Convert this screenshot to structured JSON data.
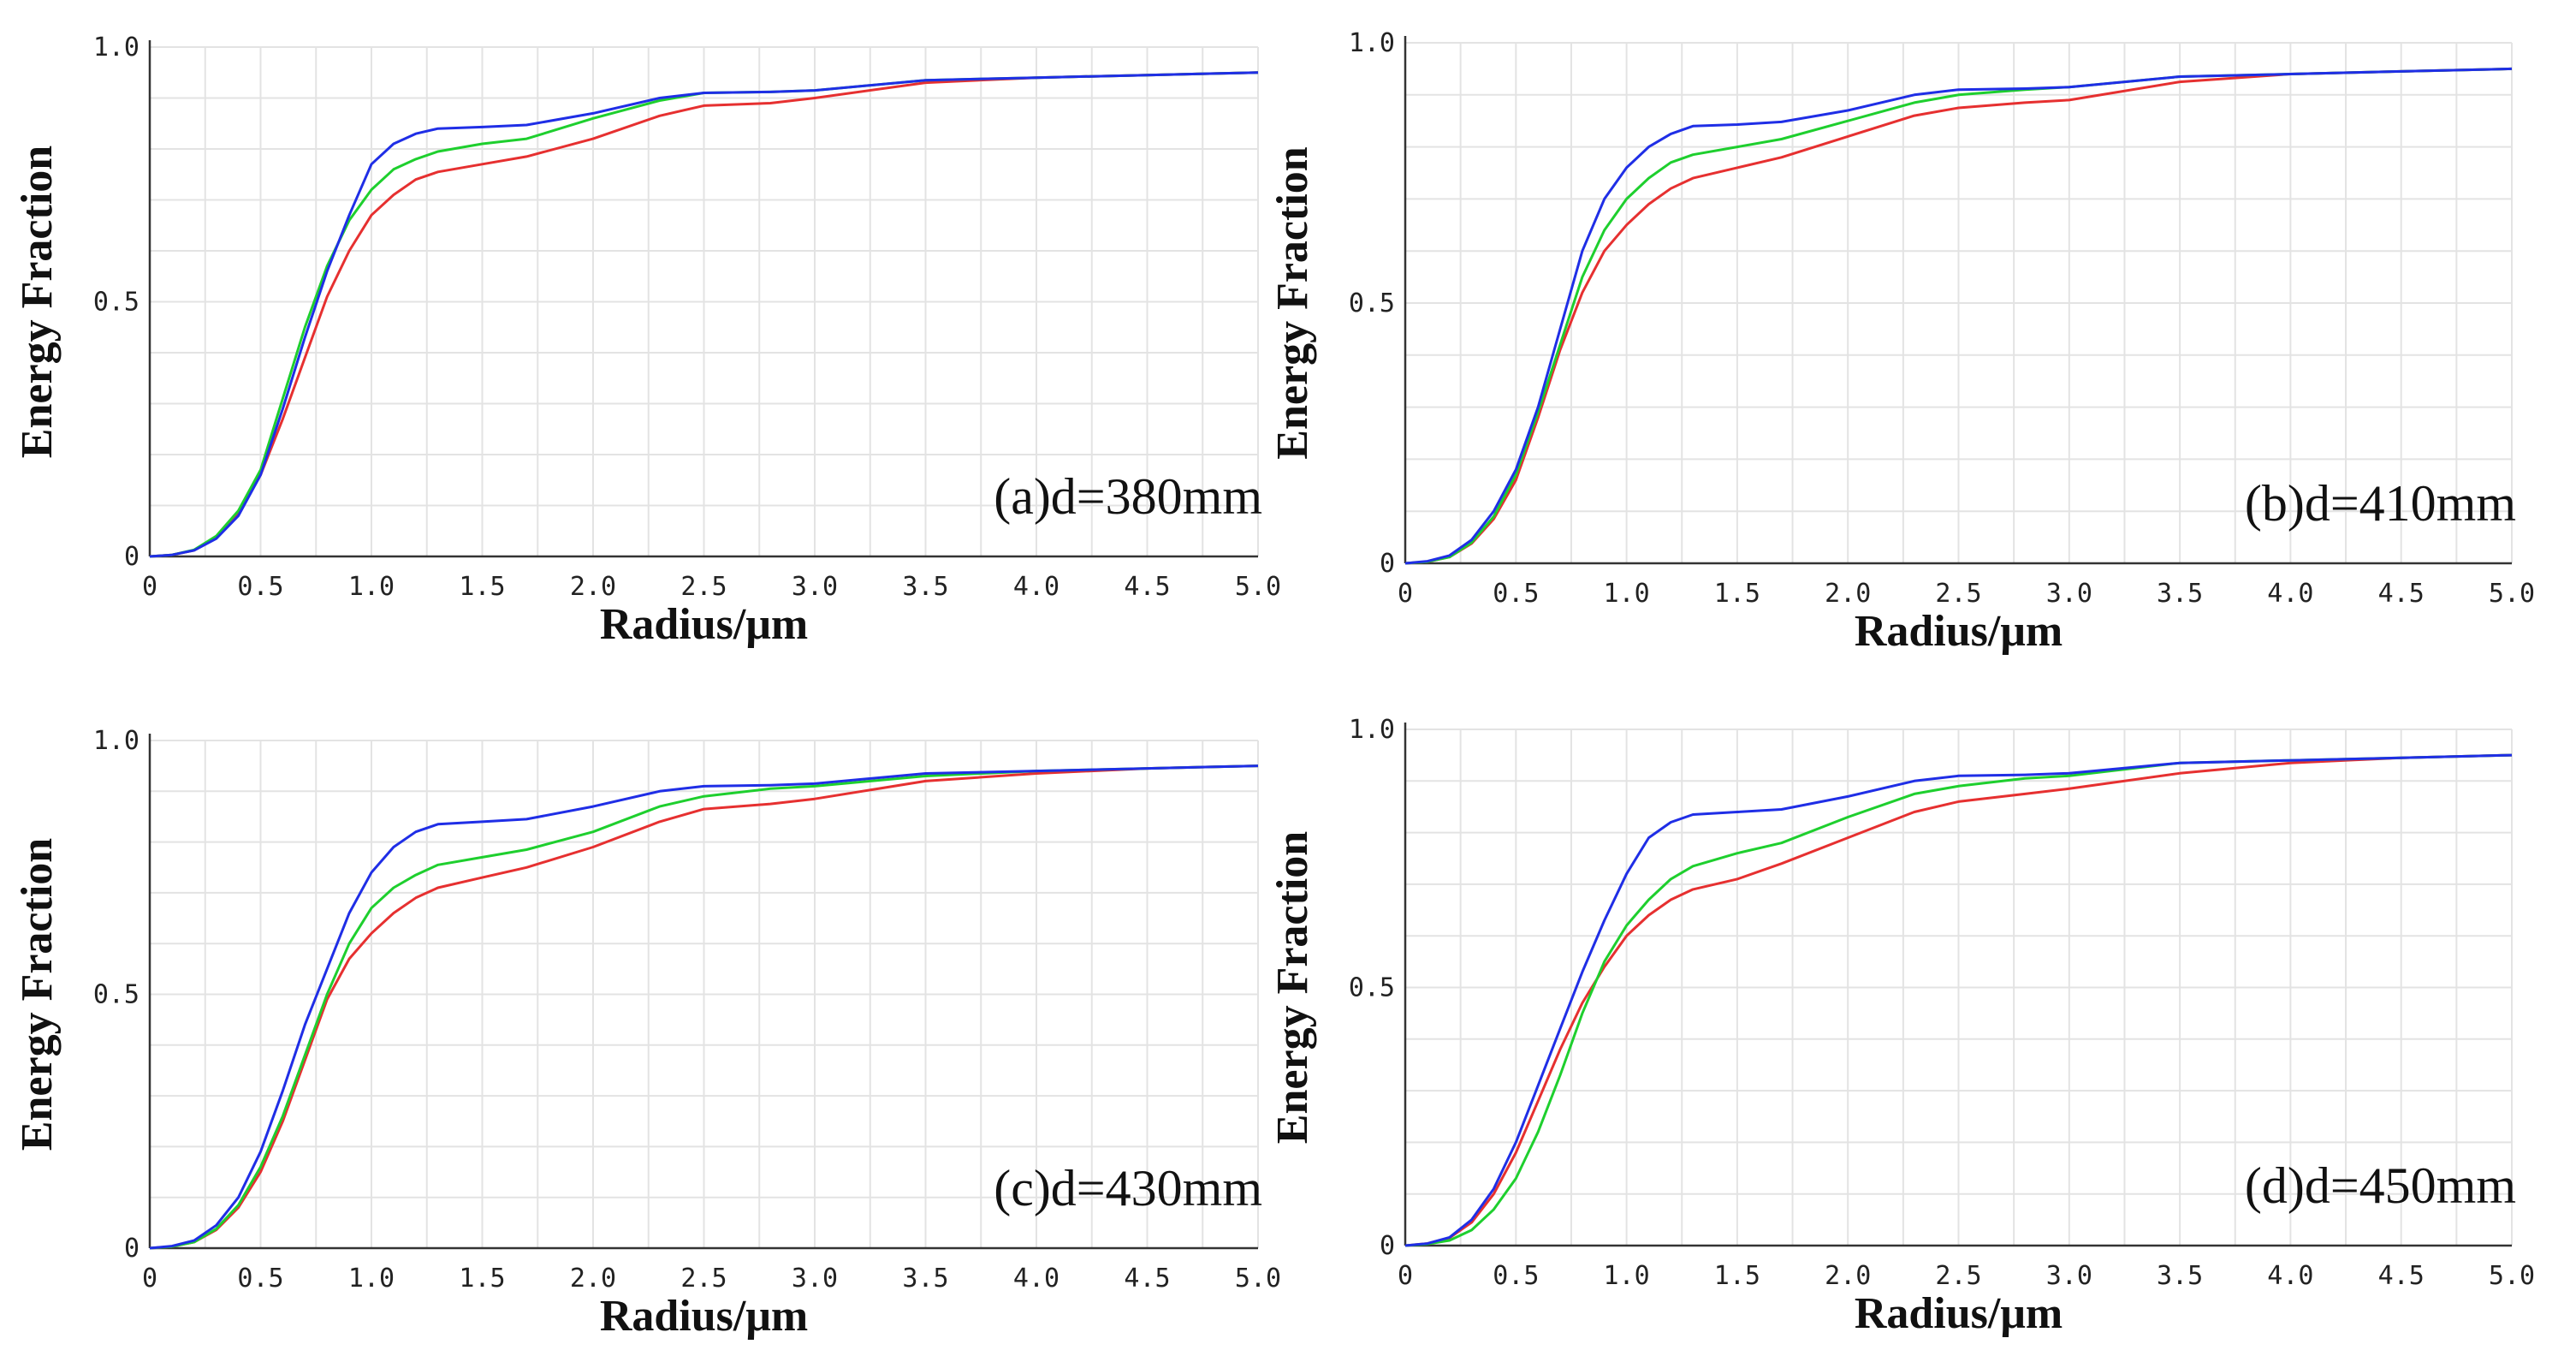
{
  "chart_data": [
    {
      "type": "line",
      "panel_label": "(a)d=380mm",
      "xlabel": "Radius/μm",
      "ylabel": "Energy Fraction",
      "xlim": [
        0,
        5.0
      ],
      "ylim": [
        0,
        1.0
      ],
      "x_ticks": [
        "0",
        "0.5",
        "1.0",
        "1.5",
        "2.0",
        "2.5",
        "3.0",
        "3.5",
        "4.0",
        "4.5",
        "5.0"
      ],
      "y_ticks": [
        "0",
        "0.5",
        "1.0"
      ],
      "x": [
        0,
        0.1,
        0.2,
        0.3,
        0.4,
        0.5,
        0.6,
        0.7,
        0.8,
        0.9,
        1.0,
        1.1,
        1.2,
        1.3,
        1.5,
        1.7,
        2.0,
        2.3,
        2.5,
        2.8,
        3.0,
        3.5,
        4.0,
        4.5,
        5.0
      ],
      "series": [
        {
          "name": "blue",
          "color": "#1f2ee6",
          "values": [
            0,
            0.003,
            0.012,
            0.035,
            0.08,
            0.16,
            0.29,
            0.43,
            0.56,
            0.67,
            0.77,
            0.81,
            0.83,
            0.84,
            0.843,
            0.847,
            0.87,
            0.9,
            0.91,
            0.912,
            0.915,
            0.935,
            0.94,
            0.945,
            0.95
          ]
        },
        {
          "name": "green",
          "color": "#1ecf2e",
          "values": [
            0,
            0.003,
            0.013,
            0.04,
            0.09,
            0.17,
            0.31,
            0.45,
            0.57,
            0.66,
            0.72,
            0.76,
            0.78,
            0.795,
            0.81,
            0.82,
            0.86,
            0.895,
            0.91,
            0.912,
            0.915,
            0.935,
            0.94,
            0.945,
            0.95
          ]
        },
        {
          "name": "red",
          "color": "#e63030",
          "values": [
            0,
            0.003,
            0.012,
            0.038,
            0.085,
            0.16,
            0.27,
            0.39,
            0.51,
            0.6,
            0.67,
            0.71,
            0.74,
            0.755,
            0.77,
            0.785,
            0.82,
            0.865,
            0.885,
            0.89,
            0.9,
            0.93,
            0.94,
            0.945,
            0.95
          ]
        }
      ]
    },
    {
      "type": "line",
      "panel_label": "(b)d=410mm",
      "xlabel": "Radius/μm",
      "ylabel": "Energy Fraction",
      "xlim": [
        0,
        5.0
      ],
      "ylim": [
        0,
        1.0
      ],
      "x_ticks": [
        "0",
        "0.5",
        "1.0",
        "1.5",
        "2.0",
        "2.5",
        "3.0",
        "3.5",
        "4.0",
        "4.5",
        "5.0"
      ],
      "y_ticks": [
        "0",
        "0.5",
        "1.0"
      ],
      "x": [
        0,
        0.1,
        0.2,
        0.3,
        0.4,
        0.5,
        0.6,
        0.7,
        0.8,
        0.9,
        1.0,
        1.1,
        1.2,
        1.3,
        1.5,
        1.7,
        2.0,
        2.3,
        2.5,
        2.8,
        3.0,
        3.5,
        4.0,
        4.5,
        5.0
      ],
      "series": [
        {
          "name": "blue",
          "color": "#1f2ee6",
          "values": [
            0,
            0.004,
            0.015,
            0.045,
            0.1,
            0.18,
            0.3,
            0.45,
            0.6,
            0.7,
            0.76,
            0.8,
            0.825,
            0.84,
            0.843,
            0.848,
            0.87,
            0.9,
            0.91,
            0.912,
            0.915,
            0.935,
            0.94,
            0.945,
            0.95
          ]
        },
        {
          "name": "green",
          "color": "#1ecf2e",
          "values": [
            0,
            0.003,
            0.012,
            0.04,
            0.09,
            0.17,
            0.29,
            0.42,
            0.55,
            0.64,
            0.7,
            0.74,
            0.77,
            0.785,
            0.8,
            0.815,
            0.85,
            0.885,
            0.9,
            0.91,
            0.915,
            0.935,
            0.94,
            0.945,
            0.95
          ]
        },
        {
          "name": "red",
          "color": "#e63030",
          "values": [
            0,
            0.003,
            0.012,
            0.038,
            0.085,
            0.16,
            0.28,
            0.41,
            0.52,
            0.6,
            0.65,
            0.69,
            0.72,
            0.74,
            0.76,
            0.78,
            0.82,
            0.86,
            0.875,
            0.885,
            0.89,
            0.925,
            0.94,
            0.945,
            0.95
          ]
        }
      ]
    },
    {
      "type": "line",
      "panel_label": "(c)d=430mm",
      "xlabel": "Radius/μm",
      "ylabel": "Energy Fraction",
      "xlim": [
        0,
        5.0
      ],
      "ylim": [
        0,
        1.0
      ],
      "x_ticks": [
        "0",
        "0.5",
        "1.0",
        "1.5",
        "2.0",
        "2.5",
        "3.0",
        "3.5",
        "4.0",
        "4.5",
        "5.0"
      ],
      "y_ticks": [
        "0",
        "0.5",
        "1.0"
      ],
      "x": [
        0,
        0.1,
        0.2,
        0.3,
        0.4,
        0.5,
        0.6,
        0.7,
        0.8,
        0.9,
        1.0,
        1.1,
        1.2,
        1.3,
        1.5,
        1.7,
        2.0,
        2.3,
        2.5,
        2.8,
        3.0,
        3.5,
        4.0,
        4.5,
        5.0
      ],
      "series": [
        {
          "name": "blue",
          "color": "#1f2ee6",
          "values": [
            0,
            0.004,
            0.015,
            0.045,
            0.1,
            0.19,
            0.31,
            0.44,
            0.55,
            0.66,
            0.74,
            0.79,
            0.82,
            0.835,
            0.84,
            0.845,
            0.87,
            0.9,
            0.91,
            0.912,
            0.915,
            0.935,
            0.94,
            0.945,
            0.95
          ]
        },
        {
          "name": "green",
          "color": "#1ecf2e",
          "values": [
            0,
            0.003,
            0.012,
            0.038,
            0.085,
            0.16,
            0.26,
            0.38,
            0.5,
            0.6,
            0.67,
            0.71,
            0.735,
            0.755,
            0.77,
            0.785,
            0.82,
            0.87,
            0.89,
            0.905,
            0.91,
            0.93,
            0.94,
            0.945,
            0.95
          ]
        },
        {
          "name": "red",
          "color": "#e63030",
          "values": [
            0,
            0.003,
            0.012,
            0.036,
            0.08,
            0.15,
            0.25,
            0.37,
            0.49,
            0.57,
            0.62,
            0.66,
            0.69,
            0.71,
            0.73,
            0.75,
            0.79,
            0.84,
            0.865,
            0.875,
            0.885,
            0.92,
            0.935,
            0.945,
            0.95
          ]
        }
      ]
    },
    {
      "type": "line",
      "panel_label": "(d)d=450mm",
      "xlabel": "Radius/μm",
      "ylabel": "Energy Fraction",
      "xlim": [
        0,
        5.0
      ],
      "ylim": [
        0,
        1.0
      ],
      "x_ticks": [
        "0",
        "0.5",
        "1.0",
        "1.5",
        "2.0",
        "2.5",
        "3.0",
        "3.5",
        "4.0",
        "4.5",
        "5.0"
      ],
      "y_ticks": [
        "0",
        "0.5",
        "1.0"
      ],
      "x": [
        0,
        0.1,
        0.2,
        0.3,
        0.4,
        0.5,
        0.6,
        0.7,
        0.8,
        0.9,
        1.0,
        1.1,
        1.2,
        1.3,
        1.5,
        1.7,
        2.0,
        2.3,
        2.5,
        2.8,
        3.0,
        3.5,
        4.0,
        4.5,
        5.0
      ],
      "series": [
        {
          "name": "blue",
          "color": "#1f2ee6",
          "values": [
            0,
            0.004,
            0.016,
            0.05,
            0.11,
            0.2,
            0.31,
            0.42,
            0.53,
            0.63,
            0.72,
            0.79,
            0.82,
            0.835,
            0.84,
            0.845,
            0.87,
            0.9,
            0.91,
            0.912,
            0.915,
            0.935,
            0.94,
            0.945,
            0.95
          ]
        },
        {
          "name": "green",
          "color": "#1ecf2e",
          "values": [
            0,
            0.003,
            0.01,
            0.03,
            0.07,
            0.13,
            0.22,
            0.33,
            0.45,
            0.55,
            0.62,
            0.67,
            0.71,
            0.735,
            0.76,
            0.78,
            0.83,
            0.875,
            0.89,
            0.905,
            0.91,
            0.935,
            0.94,
            0.945,
            0.95
          ]
        },
        {
          "name": "red",
          "color": "#e63030",
          "values": [
            0,
            0.004,
            0.015,
            0.045,
            0.1,
            0.18,
            0.28,
            0.38,
            0.47,
            0.54,
            0.6,
            0.64,
            0.67,
            0.69,
            0.71,
            0.74,
            0.79,
            0.84,
            0.86,
            0.875,
            0.885,
            0.915,
            0.935,
            0.945,
            0.95
          ]
        }
      ]
    }
  ]
}
